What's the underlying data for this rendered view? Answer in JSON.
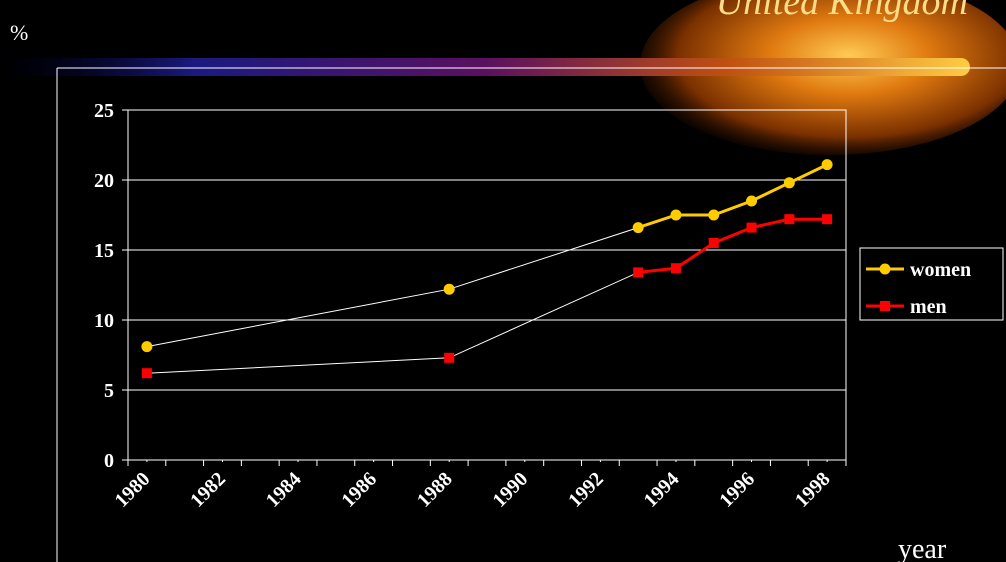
{
  "chart_data": {
    "type": "line",
    "title": "United Kingdom",
    "y_label": "%",
    "x_label": "year",
    "x": [
      1980,
      1988,
      1993,
      1994,
      1995,
      1996,
      1997,
      1998
    ],
    "series": [
      {
        "name": "women",
        "color": "#ffcc00",
        "marker": "circle",
        "values": [
          8.1,
          12.2,
          16.6,
          17.5,
          17.5,
          18.5,
          19.8,
          21.1
        ]
      },
      {
        "name": "men",
        "color": "#ff0000",
        "marker": "square",
        "values": [
          6.2,
          7.3,
          13.4,
          13.7,
          15.5,
          16.6,
          17.2,
          17.2
        ]
      }
    ],
    "xlim": [
      1979.5,
      1998.5
    ],
    "xticks": [
      1980,
      1982,
      1984,
      1986,
      1988,
      1990,
      1992,
      1994,
      1996,
      1998
    ],
    "ylim": [
      0,
      25
    ],
    "yticks": [
      0,
      5,
      10,
      15,
      20,
      25
    ],
    "grid": true,
    "legend": "right"
  }
}
